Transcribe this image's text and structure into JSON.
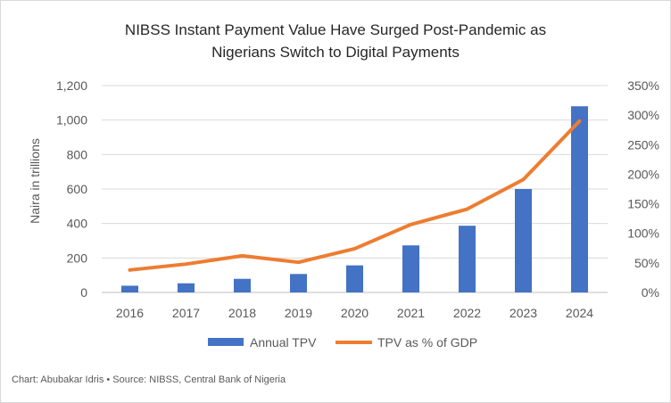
{
  "chart_data": {
    "type": "bar",
    "title": [
      "NIBSS Instant Payment Value Have Surged Post-Pandemic as",
      "Nigerians Switch to Digital Payments"
    ],
    "categories": [
      "2016",
      "2017",
      "2018",
      "2019",
      "2020",
      "2021",
      "2022",
      "2023",
      "2024"
    ],
    "series": [
      {
        "name": "Annual TPV",
        "type": "bar",
        "axis": "left",
        "color": "#4472c4",
        "values": [
          39,
          53,
          79,
          107,
          157,
          273,
          387,
          600,
          1080
        ]
      },
      {
        "name": "TPV as % of GDP",
        "type": "line",
        "axis": "right",
        "color": "#ed7d31",
        "values": [
          38,
          48,
          62,
          51,
          74,
          115,
          141,
          191,
          290
        ]
      }
    ],
    "ylabel": "Naira in trillions",
    "ylim": [
      0,
      1200
    ],
    "yticks": [
      0,
      200,
      400,
      600,
      800,
      1000,
      1200
    ],
    "ytick_labels": [
      "0",
      "200",
      "400",
      "600",
      "800",
      "1,000",
      "1,200"
    ],
    "y2lim": [
      0,
      350
    ],
    "y2ticks": [
      0,
      50,
      100,
      150,
      200,
      250,
      300,
      350
    ],
    "y2tick_labels": [
      "0%",
      "50%",
      "100%",
      "150%",
      "200%",
      "250%",
      "300%",
      "350%"
    ],
    "grid": true,
    "legend": "bottom",
    "caption": "Chart: Abubakar Idris • Source: NIBSS, Central Bank of Nigeria"
  }
}
